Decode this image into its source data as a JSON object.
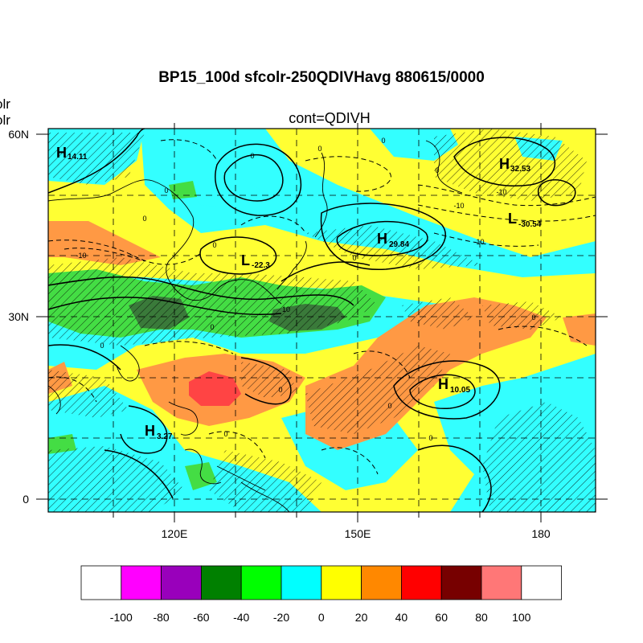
{
  "title": "BP15_100d sfcolr-250QDIVHavg  880615/0000",
  "subtitle": "cont=QDIVH",
  "left_strings": [
    "olr",
    "olr"
  ],
  "lat_labels": [
    "60N",
    "30N",
    "0"
  ],
  "lon_labels": [
    "120E",
    "150E",
    "180"
  ],
  "colorbar": {
    "labels": [
      "-100",
      "-80",
      "-60",
      "-40",
      "-20",
      "0",
      "20",
      "40",
      "60",
      "80",
      "100"
    ],
    "colors": [
      "#ffffff",
      "#ff00ff",
      "#9900bb",
      "#008000",
      "#00ff00",
      "#00ffff",
      "#ffff00",
      "#ff8800",
      "#ff0000",
      "#770000",
      "#ff7777",
      "#ffffff"
    ]
  },
  "map_colors": {
    "cyan": "#33ffff",
    "yellow": "#ffff33",
    "orange": "#ff9944",
    "green": "#44dd44",
    "darkgreen": "#3a7a3a",
    "red": "#ff4444"
  },
  "pressure_centers": [
    {
      "letter": "H",
      "value": "14.11"
    },
    {
      "letter": "H",
      "value": "32.53"
    },
    {
      "letter": "L",
      "value": "-30.54"
    },
    {
      "letter": "H",
      "value": "29.84"
    },
    {
      "letter": "L",
      "value": "-22.3"
    },
    {
      "letter": "H",
      "value": "10.05"
    },
    {
      "letter": "H",
      "value": "3.27"
    }
  ],
  "contour_labels": [
    "0",
    "0",
    "0",
    "-10",
    "-10",
    "-10",
    "-10",
    "0",
    "0",
    "0",
    "0",
    "0",
    "10",
    "0",
    "0",
    "0",
    "0",
    "0",
    "0",
    "0"
  ]
}
